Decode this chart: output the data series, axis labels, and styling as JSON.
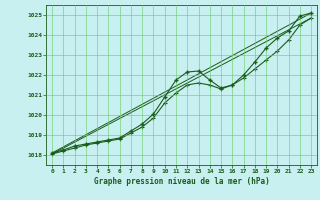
{
  "title": "Graphe pression niveau de la mer (hPa)",
  "bg_color": "#c8f0f0",
  "grid_color": "#66cc66",
  "line_color": "#1a5c1a",
  "xlim": [
    -0.5,
    23.5
  ],
  "ylim": [
    1017.5,
    1025.5
  ],
  "yticks": [
    1018,
    1019,
    1020,
    1021,
    1022,
    1023,
    1024,
    1025
  ],
  "xticks": [
    0,
    1,
    2,
    3,
    4,
    5,
    6,
    7,
    8,
    9,
    10,
    11,
    12,
    13,
    14,
    15,
    16,
    17,
    18,
    19,
    20,
    21,
    22,
    23
  ],
  "curve1_x": [
    0,
    1,
    2,
    3,
    4,
    5,
    6,
    7,
    8,
    9,
    10,
    11,
    12,
    13,
    14,
    15,
    16,
    17,
    18,
    19,
    20,
    21,
    22,
    23
  ],
  "curve1_y": [
    1018.1,
    1018.25,
    1018.45,
    1018.55,
    1018.65,
    1018.75,
    1018.85,
    1019.2,
    1019.55,
    1020.05,
    1020.9,
    1021.75,
    1022.15,
    1022.2,
    1021.75,
    1021.35,
    1021.5,
    1022.0,
    1022.65,
    1023.35,
    1023.85,
    1024.2,
    1024.95,
    1025.1
  ],
  "curve2_x": [
    0,
    1,
    2,
    3,
    4,
    5,
    6,
    7,
    8,
    9,
    10,
    11,
    12,
    13,
    14,
    15,
    16,
    17,
    18,
    19,
    20,
    21,
    22,
    23
  ],
  "curve2_y": [
    1018.05,
    1018.2,
    1018.35,
    1018.5,
    1018.6,
    1018.7,
    1018.8,
    1019.1,
    1019.4,
    1019.85,
    1020.6,
    1021.1,
    1021.5,
    1021.6,
    1021.5,
    1021.3,
    1021.5,
    1021.85,
    1022.3,
    1022.75,
    1023.2,
    1023.75,
    1024.5,
    1024.85
  ],
  "line1_x": [
    0,
    23
  ],
  "line1_y": [
    1018.1,
    1025.1
  ],
  "line2_x": [
    0,
    23
  ],
  "line2_y": [
    1018.05,
    1024.85
  ]
}
